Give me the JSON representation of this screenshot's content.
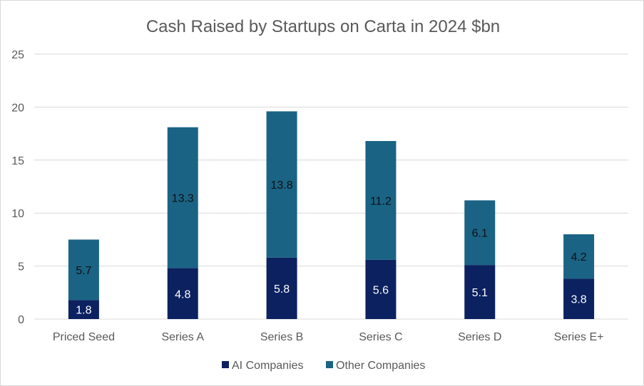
{
  "chart_data": {
    "type": "bar",
    "stacked": true,
    "title": "Cash Raised by Startups on Carta in 2024 $bn",
    "xlabel": "",
    "ylabel": "",
    "ylim": [
      0,
      25
    ],
    "yticks": [
      0,
      5,
      10,
      15,
      20,
      25
    ],
    "grid": true,
    "legend_position": "bottom",
    "categories": [
      "Priced Seed",
      "Series A",
      "Series B",
      "Series C",
      "Series D",
      "Series E+"
    ],
    "series": [
      {
        "name": "AI Companies",
        "color": "#0c2160",
        "label_color": "#ffffff",
        "values": [
          1.8,
          4.8,
          5.8,
          5.6,
          5.1,
          3.8
        ]
      },
      {
        "name": "Other Companies",
        "color": "#1a6385",
        "label_color": "#111111",
        "values": [
          5.7,
          13.3,
          13.8,
          11.2,
          6.1,
          4.2
        ]
      }
    ]
  }
}
